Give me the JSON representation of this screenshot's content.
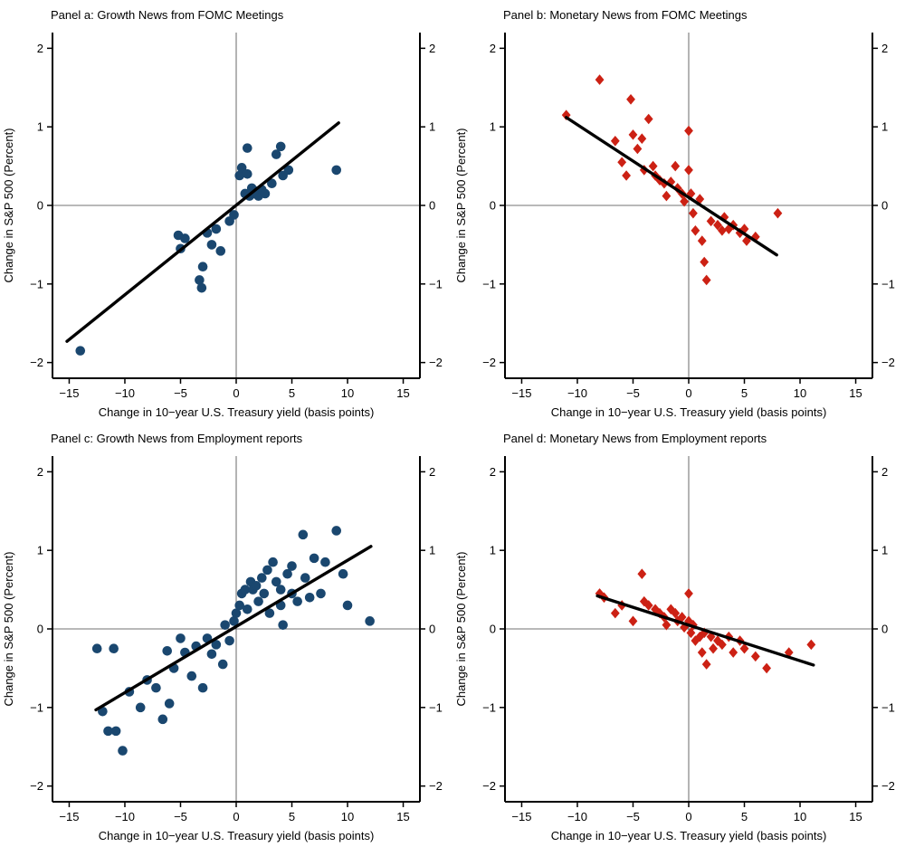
{
  "figure": {
    "description": "Four-panel scatter figure: stock market response to Treasury yield changes split into growth vs monetary news from FOMC meetings and Employment reports"
  },
  "chart_data": [
    {
      "type": "scatter",
      "title": "Panel a: Growth News from FOMC Meetings",
      "xlabel": "Change in 10−year U.S. Treasury yield (basis points)",
      "ylabel": "Change in S&P 500 (Percent)",
      "xlim": [
        -16.5,
        16.5
      ],
      "ylim": [
        -2.2,
        2.2
      ],
      "xticks": [
        -15,
        -10,
        -5,
        0,
        5,
        10,
        15
      ],
      "yticks": [
        -2,
        -1,
        0,
        1,
        2
      ],
      "marker": "circle",
      "color": "#1a476f",
      "line_color": "#000000",
      "ref_line_x": 0,
      "ref_line_y": 0,
      "fit_line": {
        "x1": -15.2,
        "y1": -1.73,
        "x2": 9.2,
        "y2": 1.05
      },
      "points": [
        [
          -14,
          -1.85
        ],
        [
          -5.2,
          -0.38
        ],
        [
          -5,
          -0.55
        ],
        [
          -4.6,
          -0.42
        ],
        [
          -3.3,
          -0.95
        ],
        [
          -3.1,
          -1.05
        ],
        [
          -3,
          -0.78
        ],
        [
          -2.6,
          -0.35
        ],
        [
          -2.2,
          -0.5
        ],
        [
          -1.8,
          -0.3
        ],
        [
          -1.4,
          -0.58
        ],
        [
          -0.6,
          -0.2
        ],
        [
          -0.2,
          -0.12
        ],
        [
          0.3,
          0.38
        ],
        [
          0.5,
          0.48
        ],
        [
          0.8,
          0.15
        ],
        [
          1,
          0.73
        ],
        [
          1,
          0.4
        ],
        [
          1.2,
          0.12
        ],
        [
          1.4,
          0.22
        ],
        [
          1.6,
          0.15
        ],
        [
          1.8,
          0.18
        ],
        [
          2,
          0.12
        ],
        [
          2.3,
          0.2
        ],
        [
          2.6,
          0.15
        ],
        [
          3.2,
          0.28
        ],
        [
          3.6,
          0.65
        ],
        [
          4,
          0.75
        ],
        [
          4.2,
          0.38
        ],
        [
          4.7,
          0.45
        ],
        [
          9,
          0.45
        ]
      ]
    },
    {
      "type": "scatter",
      "title": "Panel b: Monetary News from FOMC Meetings",
      "xlabel": "Change in 10−year U.S. Treasury yield (basis points)",
      "ylabel": "Change in S&P 500 (Percent)",
      "xlim": [
        -16.5,
        16.5
      ],
      "ylim": [
        -2.2,
        2.2
      ],
      "xticks": [
        -15,
        -10,
        -5,
        0,
        5,
        10,
        15
      ],
      "yticks": [
        -2,
        -1,
        0,
        1,
        2
      ],
      "marker": "diamond",
      "color": "#cc2114",
      "line_color": "#000000",
      "ref_line_x": 0,
      "ref_line_y": 0,
      "fit_line": {
        "x1": -11,
        "y1": 1.12,
        "x2": 7.9,
        "y2": -0.63
      },
      "points": [
        [
          -11,
          1.15
        ],
        [
          -8,
          1.6
        ],
        [
          -6.6,
          0.82
        ],
        [
          -6,
          0.55
        ],
        [
          -5.6,
          0.38
        ],
        [
          -5.2,
          1.35
        ],
        [
          -5,
          0.9
        ],
        [
          -4.6,
          0.72
        ],
        [
          -4.2,
          0.85
        ],
        [
          -4,
          0.45
        ],
        [
          -3.6,
          1.1
        ],
        [
          -3.2,
          0.5
        ],
        [
          -3,
          0.38
        ],
        [
          -2.6,
          0.32
        ],
        [
          -2.2,
          0.28
        ],
        [
          -2,
          0.12
        ],
        [
          -1.6,
          0.3
        ],
        [
          -1.2,
          0.5
        ],
        [
          -1,
          0.22
        ],
        [
          -0.6,
          0.15
        ],
        [
          -0.4,
          0.05
        ],
        [
          0,
          0.95
        ],
        [
          0,
          0.45
        ],
        [
          0.2,
          0.15
        ],
        [
          0.4,
          -0.1
        ],
        [
          0.6,
          -0.32
        ],
        [
          1,
          0.08
        ],
        [
          1.2,
          -0.45
        ],
        [
          1.4,
          -0.72
        ],
        [
          1.6,
          -0.95
        ],
        [
          2,
          -0.2
        ],
        [
          2.6,
          -0.25
        ],
        [
          3,
          -0.32
        ],
        [
          3.2,
          -0.15
        ],
        [
          3.6,
          -0.3
        ],
        [
          4,
          -0.25
        ],
        [
          4.6,
          -0.35
        ],
        [
          5,
          -0.3
        ],
        [
          5.2,
          -0.45
        ],
        [
          6,
          -0.4
        ],
        [
          8,
          -0.1
        ]
      ]
    },
    {
      "type": "scatter",
      "title": "Panel c: Growth News from Employment reports",
      "xlabel": "Change in 10−year U.S. Treasury yield (basis points)",
      "ylabel": "Change in S&P 500 (Percent)",
      "xlim": [
        -16.5,
        16.5
      ],
      "ylim": [
        -2.2,
        2.2
      ],
      "xticks": [
        -15,
        -10,
        -5,
        0,
        5,
        10,
        15
      ],
      "yticks": [
        -2,
        -1,
        0,
        1,
        2
      ],
      "marker": "circle",
      "color": "#1a476f",
      "line_color": "#000000",
      "ref_line_x": 0,
      "ref_line_y": 0,
      "fit_line": {
        "x1": -12.6,
        "y1": -1.03,
        "x2": 12.1,
        "y2": 1.05
      },
      "points": [
        [
          -12.5,
          -0.25
        ],
        [
          -12,
          -1.05
        ],
        [
          -11.5,
          -1.3
        ],
        [
          -11,
          -0.25
        ],
        [
          -10.8,
          -1.3
        ],
        [
          -10.2,
          -1.55
        ],
        [
          -9.6,
          -0.8
        ],
        [
          -8.6,
          -1.0
        ],
        [
          -8,
          -0.65
        ],
        [
          -7.2,
          -0.75
        ],
        [
          -6.6,
          -1.15
        ],
        [
          -6.2,
          -0.28
        ],
        [
          -6,
          -0.95
        ],
        [
          -5.6,
          -0.5
        ],
        [
          -5,
          -0.12
        ],
        [
          -4.6,
          -0.3
        ],
        [
          -4,
          -0.6
        ],
        [
          -3.6,
          -0.22
        ],
        [
          -3,
          -0.75
        ],
        [
          -2.6,
          -0.12
        ],
        [
          -2.2,
          -0.32
        ],
        [
          -1.8,
          -0.2
        ],
        [
          -1.2,
          -0.45
        ],
        [
          -1,
          0.05
        ],
        [
          -0.6,
          -0.15
        ],
        [
          -0.2,
          0.1
        ],
        [
          0,
          0.2
        ],
        [
          0.3,
          0.3
        ],
        [
          0.5,
          0.45
        ],
        [
          0.8,
          0.5
        ],
        [
          1,
          0.25
        ],
        [
          1.3,
          0.6
        ],
        [
          1.5,
          0.5
        ],
        [
          1.8,
          0.55
        ],
        [
          2,
          0.35
        ],
        [
          2.3,
          0.65
        ],
        [
          2.5,
          0.45
        ],
        [
          2.8,
          0.75
        ],
        [
          3,
          0.2
        ],
        [
          3.3,
          0.85
        ],
        [
          3.6,
          0.6
        ],
        [
          4,
          0.5
        ],
        [
          4,
          0.3
        ],
        [
          4.2,
          0.05
        ],
        [
          4.6,
          0.7
        ],
        [
          5,
          0.8
        ],
        [
          5,
          0.45
        ],
        [
          5.5,
          0.35
        ],
        [
          6,
          1.2
        ],
        [
          6.2,
          0.65
        ],
        [
          6.6,
          0.4
        ],
        [
          7,
          0.9
        ],
        [
          7.6,
          0.45
        ],
        [
          8,
          0.85
        ],
        [
          9,
          1.25
        ],
        [
          9.6,
          0.7
        ],
        [
          10,
          0.3
        ],
        [
          12,
          0.1
        ]
      ]
    },
    {
      "type": "scatter",
      "title": "Panel d: Monetary News from Employment reports",
      "xlabel": "Change in 10−year U.S. Treasury yield (basis points)",
      "ylabel": "Change in S&P 500 (Percent)",
      "xlim": [
        -16.5,
        16.5
      ],
      "ylim": [
        -2.2,
        2.2
      ],
      "xticks": [
        -15,
        -10,
        -5,
        0,
        5,
        10,
        15
      ],
      "yticks": [
        -2,
        -1,
        0,
        1,
        2
      ],
      "marker": "diamond",
      "color": "#cc2114",
      "line_color": "#000000",
      "ref_line_x": 0,
      "ref_line_y": 0,
      "fit_line": {
        "x1": -8.2,
        "y1": 0.42,
        "x2": 11.2,
        "y2": -0.46
      },
      "points": [
        [
          -8,
          0.45
        ],
        [
          -7.6,
          0.4
        ],
        [
          -6.6,
          0.2
        ],
        [
          -6,
          0.3
        ],
        [
          -5,
          0.1
        ],
        [
          -4.2,
          0.7
        ],
        [
          -4,
          0.35
        ],
        [
          -3.6,
          0.3
        ],
        [
          -3,
          0.25
        ],
        [
          -2.6,
          0.2
        ],
        [
          -2.2,
          0.15
        ],
        [
          -2,
          0.05
        ],
        [
          -1.6,
          0.25
        ],
        [
          -1.2,
          0.2
        ],
        [
          -1,
          0.1
        ],
        [
          -0.6,
          0.15
        ],
        [
          -0.4,
          0.02
        ],
        [
          0,
          0.45
        ],
        [
          0,
          0.1
        ],
        [
          0.2,
          -0.05
        ],
        [
          0.4,
          0.05
        ],
        [
          0.6,
          -0.15
        ],
        [
          1,
          -0.1
        ],
        [
          1.2,
          -0.3
        ],
        [
          1.4,
          -0.05
        ],
        [
          1.6,
          -0.45
        ],
        [
          2,
          -0.1
        ],
        [
          2.2,
          -0.25
        ],
        [
          2.6,
          -0.15
        ],
        [
          3,
          -0.2
        ],
        [
          3.6,
          -0.1
        ],
        [
          4,
          -0.3
        ],
        [
          4.6,
          -0.15
        ],
        [
          5,
          -0.25
        ],
        [
          6,
          -0.35
        ],
        [
          7,
          -0.5
        ],
        [
          9,
          -0.3
        ],
        [
          11,
          -0.2
        ]
      ]
    }
  ]
}
